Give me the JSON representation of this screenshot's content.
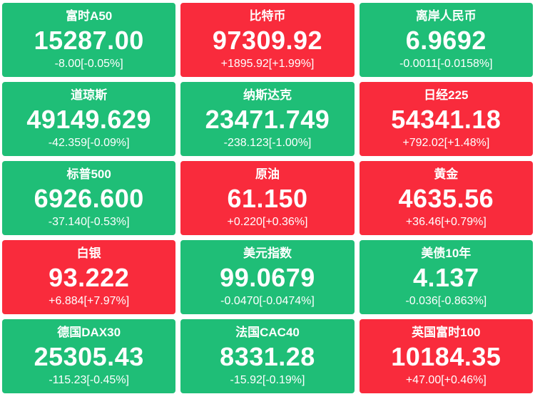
{
  "colors": {
    "up": "#f92b3c",
    "down": "#1fbe77",
    "text": "#ffffff",
    "background": "#ffffff"
  },
  "tiles": [
    {
      "name": "富时A50",
      "value": "15287.00",
      "change": "-8.00[-0.05%]",
      "direction": "down"
    },
    {
      "name": "比特币",
      "value": "97309.92",
      "change": "+1895.92[+1.99%]",
      "direction": "up"
    },
    {
      "name": "离岸人民币",
      "value": "6.9692",
      "change": "-0.0011[-0.0158%]",
      "direction": "down"
    },
    {
      "name": "道琼斯",
      "value": "49149.629",
      "change": "-42.359[-0.09%]",
      "direction": "down"
    },
    {
      "name": "纳斯达克",
      "value": "23471.749",
      "change": "-238.123[-1.00%]",
      "direction": "down"
    },
    {
      "name": "日经225",
      "value": "54341.18",
      "change": "+792.02[+1.48%]",
      "direction": "up"
    },
    {
      "name": "标普500",
      "value": "6926.600",
      "change": "-37.140[-0.53%]",
      "direction": "down"
    },
    {
      "name": "原油",
      "value": "61.150",
      "change": "+0.220[+0.36%]",
      "direction": "up"
    },
    {
      "name": "黄金",
      "value": "4635.56",
      "change": "+36.46[+0.79%]",
      "direction": "up"
    },
    {
      "name": "白银",
      "value": "93.222",
      "change": "+6.884[+7.97%]",
      "direction": "up"
    },
    {
      "name": "美元指数",
      "value": "99.0679",
      "change": "-0.0470[-0.0474%]",
      "direction": "down"
    },
    {
      "name": "美债10年",
      "value": "4.137",
      "change": "-0.036[-0.863%]",
      "direction": "down"
    },
    {
      "name": "德国DAX30",
      "value": "25305.43",
      "change": "-115.23[-0.45%]",
      "direction": "down"
    },
    {
      "name": "法国CAC40",
      "value": "8331.28",
      "change": "-15.92[-0.19%]",
      "direction": "down"
    },
    {
      "name": "英国富时100",
      "value": "10184.35",
      "change": "+47.00[+0.46%]",
      "direction": "up"
    }
  ]
}
